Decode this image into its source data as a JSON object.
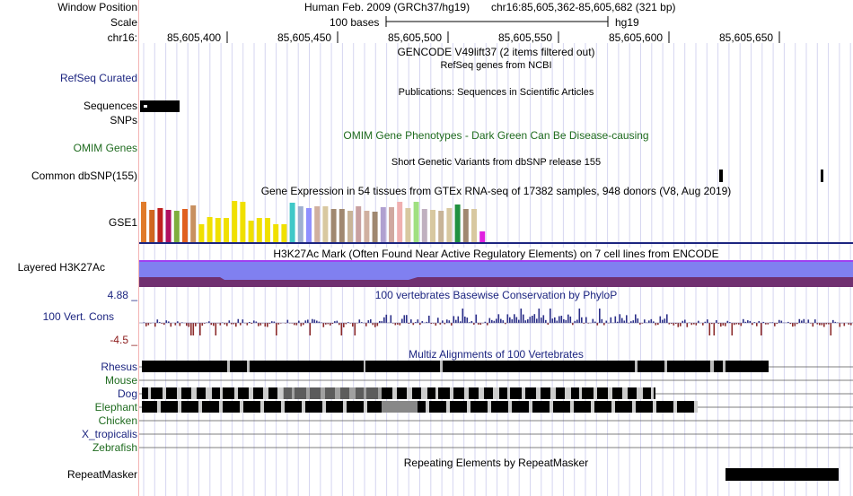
{
  "labels": {
    "window_position": "Window Position",
    "scale": "Scale",
    "chrom": "chr16:",
    "refseq": "RefSeq Curated",
    "sequences": "Sequences",
    "snps": "SNPs",
    "omim": "OMIM Genes",
    "dbsnp": "Common dbSNP(155)",
    "gse1": "GSE1",
    "h3k27ac": "Layered H3K27Ac",
    "cons_max": "4.88 _",
    "cons_label": "100 Vert. Cons",
    "cons_min": "-4.5 _"
  },
  "header": {
    "assembly": "Human Feb. 2009 (GRCh37/hg19)",
    "position": "chr16:85,605,362-85,605,682 (321 bp)",
    "scale_text": "100 bases",
    "scale_db": "hg19",
    "ruler_ticks": [
      "85,605,400",
      "85,605,450",
      "85,605,500",
      "85,605,550",
      "85,605,600",
      "85,605,650"
    ]
  },
  "tracks": {
    "gencode": "GENCODE V49lift37 (2 items filtered out)",
    "refseq": "RefSeq genes from NCBI",
    "publications": "Publications: Sequences in Scientific Articles",
    "omim": "OMIM Gene Phenotypes - Dark Green Can Be Disease-causing",
    "dbsnp": "Short Genetic Variants from dbSNP release 155",
    "gtex": "Gene Expression in 54 tissues from GTEx RNA-seq of 17382 samples, 948 donors (V8, Aug 2019)",
    "h3k27ac": "H3K27Ac Mark (Often Found Near Active Regulatory Elements) on 7 cell lines from ENCODE",
    "phylop": "100 vertebrates Basewise Conservation by PhyloP",
    "multiz": "Multiz Alignments of 100 Vertebrates",
    "repeatmasker": "Repeating Elements by RepeatMasker"
  },
  "species": [
    {
      "name": "Rhesus",
      "color": "#1c2580"
    },
    {
      "name": "Mouse",
      "color": "#1f6b1f"
    },
    {
      "name": "Dog",
      "color": "#1c2580"
    },
    {
      "name": "Elephant",
      "color": "#1f6b1f"
    },
    {
      "name": "Chicken",
      "color": "#1f6b1f"
    },
    {
      "name": "X_tropicalis",
      "color": "#1c2580"
    },
    {
      "name": "Zebrafish",
      "color": "#1f6b1f"
    }
  ],
  "colors": {
    "navy": "#1c2580",
    "green": "#1f6b1f",
    "conservation_pos": "#2b2f88",
    "conservation_neg": "#8b2a2a",
    "h3k27ac_fill": "#8080f0",
    "h3k27ac_dark": "#703070",
    "grid": "#d6d6f0"
  },
  "gtex_bars": [
    {
      "color": "#e07b2b",
      "level": 0.98
    },
    {
      "color": "#d0661e",
      "level": 0.78
    },
    {
      "color": "#c02020",
      "level": 0.82
    },
    {
      "color": "#b01060",
      "level": 0.78
    },
    {
      "color": "#7fae3c",
      "level": 0.76
    },
    {
      "color": "#e06020",
      "level": 0.8
    },
    {
      "color": "#c89060",
      "level": 0.9
    },
    {
      "color": "#f0e000",
      "level": 0.44
    },
    {
      "color": "#f0e000",
      "level": 0.6
    },
    {
      "color": "#f0e000",
      "level": 0.58
    },
    {
      "color": "#f0e000",
      "level": 0.58
    },
    {
      "color": "#f0e000",
      "level": 1.0
    },
    {
      "color": "#f0e000",
      "level": 0.98
    },
    {
      "color": "#f0e000",
      "level": 0.52
    },
    {
      "color": "#f0e000",
      "level": 0.58
    },
    {
      "color": "#f0e000",
      "level": 0.58
    },
    {
      "color": "#f0e000",
      "level": 0.44
    },
    {
      "color": "#f0e000",
      "level": 0.44
    },
    {
      "color": "#40c8c8",
      "level": 0.96
    },
    {
      "color": "#a0b0d0",
      "level": 0.86
    },
    {
      "color": "#9090ff",
      "level": 0.82
    },
    {
      "color": "#d0b0a0",
      "level": 0.88
    },
    {
      "color": "#d8c8a0",
      "level": 0.88
    },
    {
      "color": "#a08870",
      "level": 0.8
    },
    {
      "color": "#a08870",
      "level": 0.8
    },
    {
      "color": "#c8b498",
      "level": 0.76
    },
    {
      "color": "#c8a0a0",
      "level": 0.86
    },
    {
      "color": "#d0b0a0",
      "level": 0.76
    },
    {
      "color": "#a08870",
      "level": 0.74
    },
    {
      "color": "#b0a0d0",
      "level": 0.84
    },
    {
      "color": "#d0a8a0",
      "level": 0.84
    },
    {
      "color": "#f0b0b0",
      "level": 0.98
    },
    {
      "color": "#d8c8a0",
      "level": 0.82
    },
    {
      "color": "#a0e080",
      "level": 0.98
    },
    {
      "color": "#c0b0c0",
      "level": 0.8
    },
    {
      "color": "#d8c8a0",
      "level": 0.78
    },
    {
      "color": "#c8b498",
      "level": 0.76
    },
    {
      "color": "#d8c8a0",
      "level": 0.82
    },
    {
      "color": "#209040",
      "level": 0.92
    },
    {
      "color": "#a08870",
      "level": 0.8
    },
    {
      "color": "#d8c8a0",
      "level": 0.8
    },
    {
      "color": "#e020e0",
      "level": 0.26
    }
  ]
}
